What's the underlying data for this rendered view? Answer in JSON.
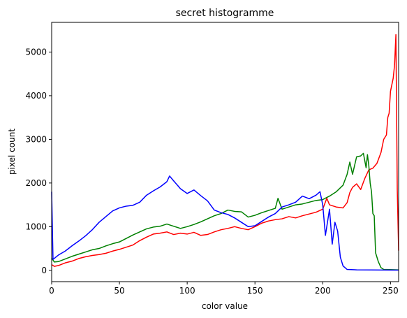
{
  "chart_data": {
    "type": "line",
    "title": "secret histogramme",
    "xlabel": "color value",
    "ylabel": "pixel count",
    "xlim": [
      0,
      256
    ],
    "ylim": [
      -260,
      5680
    ],
    "xticks": [
      0,
      50,
      100,
      150,
      200,
      250
    ],
    "yticks": [
      0,
      1000,
      2000,
      3000,
      4000,
      5000
    ],
    "grid": false,
    "series": [
      {
        "color": "#ff0000",
        "points": [
          [
            0,
            130
          ],
          [
            2,
            90
          ],
          [
            5,
            110
          ],
          [
            10,
            170
          ],
          [
            15,
            210
          ],
          [
            20,
            270
          ],
          [
            25,
            310
          ],
          [
            30,
            340
          ],
          [
            35,
            360
          ],
          [
            40,
            390
          ],
          [
            45,
            440
          ],
          [
            50,
            480
          ],
          [
            55,
            530
          ],
          [
            60,
            580
          ],
          [
            65,
            680
          ],
          [
            70,
            760
          ],
          [
            75,
            830
          ],
          [
            80,
            850
          ],
          [
            85,
            880
          ],
          [
            90,
            820
          ],
          [
            95,
            850
          ],
          [
            100,
            830
          ],
          [
            105,
            870
          ],
          [
            110,
            800
          ],
          [
            115,
            820
          ],
          [
            120,
            880
          ],
          [
            125,
            930
          ],
          [
            130,
            960
          ],
          [
            135,
            1000
          ],
          [
            140,
            960
          ],
          [
            145,
            930
          ],
          [
            150,
            1000
          ],
          [
            155,
            1080
          ],
          [
            160,
            1130
          ],
          [
            165,
            1160
          ],
          [
            170,
            1180
          ],
          [
            175,
            1230
          ],
          [
            180,
            1200
          ],
          [
            185,
            1250
          ],
          [
            190,
            1290
          ],
          [
            195,
            1330
          ],
          [
            200,
            1400
          ],
          [
            203,
            1650
          ],
          [
            205,
            1500
          ],
          [
            210,
            1450
          ],
          [
            215,
            1430
          ],
          [
            218,
            1550
          ],
          [
            220,
            1780
          ],
          [
            222,
            1900
          ],
          [
            225,
            1980
          ],
          [
            228,
            1850
          ],
          [
            231,
            2100
          ],
          [
            234,
            2300
          ],
          [
            237,
            2340
          ],
          [
            240,
            2450
          ],
          [
            243,
            2700
          ],
          [
            245,
            3000
          ],
          [
            247,
            3100
          ],
          [
            248,
            3500
          ],
          [
            249,
            3600
          ],
          [
            250,
            4100
          ],
          [
            251,
            4250
          ],
          [
            252,
            4400
          ],
          [
            253,
            4700
          ],
          [
            254,
            5400
          ],
          [
            255,
            1850
          ],
          [
            256,
            450
          ]
        ]
      },
      {
        "color": "#008000",
        "points": [
          [
            0,
            280
          ],
          [
            2,
            190
          ],
          [
            5,
            200
          ],
          [
            10,
            260
          ],
          [
            15,
            320
          ],
          [
            20,
            370
          ],
          [
            25,
            420
          ],
          [
            30,
            470
          ],
          [
            35,
            500
          ],
          [
            40,
            560
          ],
          [
            45,
            610
          ],
          [
            50,
            650
          ],
          [
            55,
            730
          ],
          [
            60,
            810
          ],
          [
            65,
            880
          ],
          [
            70,
            950
          ],
          [
            75,
            990
          ],
          [
            80,
            1010
          ],
          [
            85,
            1060
          ],
          [
            90,
            1010
          ],
          [
            95,
            960
          ],
          [
            100,
            1000
          ],
          [
            105,
            1050
          ],
          [
            110,
            1110
          ],
          [
            115,
            1180
          ],
          [
            120,
            1250
          ],
          [
            125,
            1300
          ],
          [
            130,
            1380
          ],
          [
            135,
            1350
          ],
          [
            140,
            1340
          ],
          [
            145,
            1220
          ],
          [
            150,
            1260
          ],
          [
            155,
            1320
          ],
          [
            160,
            1370
          ],
          [
            165,
            1420
          ],
          [
            167,
            1650
          ],
          [
            170,
            1400
          ],
          [
            175,
            1450
          ],
          [
            180,
            1500
          ],
          [
            185,
            1520
          ],
          [
            190,
            1560
          ],
          [
            195,
            1600
          ],
          [
            200,
            1620
          ],
          [
            205,
            1700
          ],
          [
            210,
            1800
          ],
          [
            215,
            1950
          ],
          [
            218,
            2200
          ],
          [
            220,
            2480
          ],
          [
            222,
            2200
          ],
          [
            225,
            2600
          ],
          [
            228,
            2620
          ],
          [
            230,
            2680
          ],
          [
            232,
            2350
          ],
          [
            233,
            2650
          ],
          [
            234,
            2400
          ],
          [
            235,
            2000
          ],
          [
            236,
            1800
          ],
          [
            237,
            1300
          ],
          [
            238,
            1250
          ],
          [
            239,
            400
          ],
          [
            241,
            200
          ],
          [
            243,
            60
          ],
          [
            245,
            20
          ],
          [
            256,
            10
          ]
        ]
      },
      {
        "color": "#0000ff",
        "points": [
          [
            0,
            1800
          ],
          [
            1,
            250
          ],
          [
            5,
            350
          ],
          [
            10,
            440
          ],
          [
            15,
            560
          ],
          [
            20,
            670
          ],
          [
            25,
            790
          ],
          [
            30,
            930
          ],
          [
            35,
            1100
          ],
          [
            40,
            1230
          ],
          [
            45,
            1360
          ],
          [
            50,
            1430
          ],
          [
            55,
            1470
          ],
          [
            60,
            1490
          ],
          [
            65,
            1560
          ],
          [
            70,
            1720
          ],
          [
            75,
            1820
          ],
          [
            80,
            1910
          ],
          [
            85,
            2030
          ],
          [
            87,
            2160
          ],
          [
            90,
            2050
          ],
          [
            95,
            1870
          ],
          [
            100,
            1760
          ],
          [
            105,
            1840
          ],
          [
            110,
            1710
          ],
          [
            115,
            1590
          ],
          [
            120,
            1380
          ],
          [
            125,
            1320
          ],
          [
            130,
            1280
          ],
          [
            135,
            1200
          ],
          [
            140,
            1100
          ],
          [
            145,
            1000
          ],
          [
            150,
            1020
          ],
          [
            155,
            1120
          ],
          [
            160,
            1220
          ],
          [
            165,
            1300
          ],
          [
            170,
            1450
          ],
          [
            175,
            1500
          ],
          [
            180,
            1560
          ],
          [
            185,
            1700
          ],
          [
            190,
            1640
          ],
          [
            195,
            1720
          ],
          [
            198,
            1800
          ],
          [
            200,
            1500
          ],
          [
            202,
            800
          ],
          [
            205,
            1400
          ],
          [
            207,
            600
          ],
          [
            209,
            1100
          ],
          [
            211,
            900
          ],
          [
            213,
            300
          ],
          [
            215,
            100
          ],
          [
            218,
            20
          ],
          [
            225,
            10
          ],
          [
            256,
            5
          ]
        ]
      }
    ]
  }
}
